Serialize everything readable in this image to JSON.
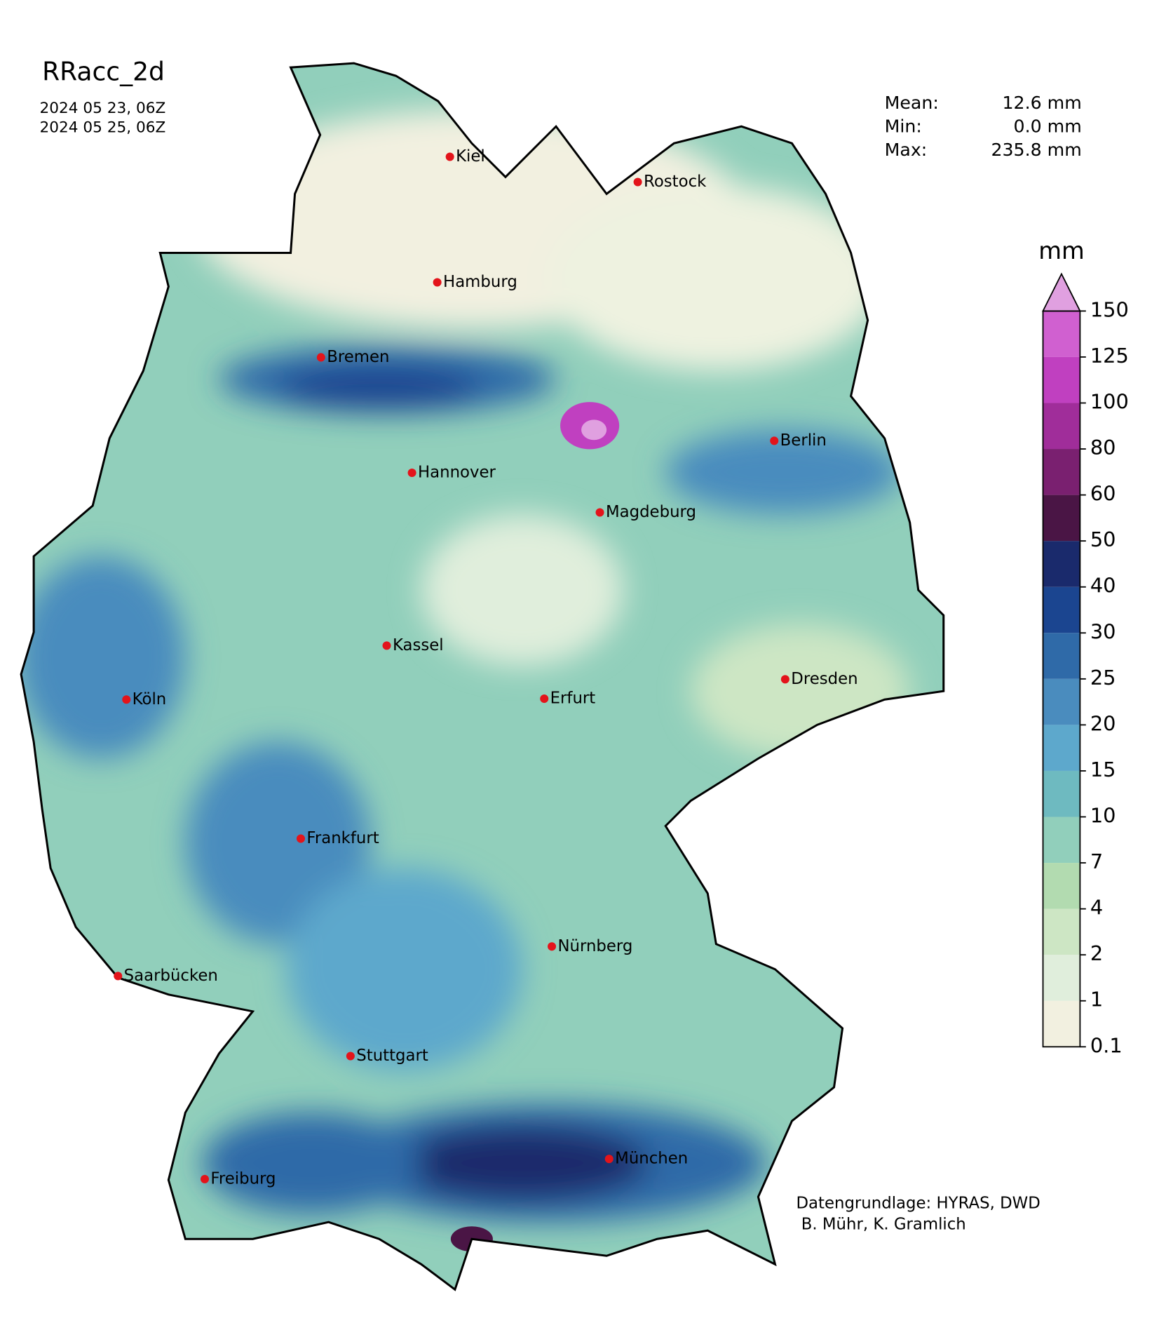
{
  "title": "RRacc_2d",
  "dates": [
    "2024 05 23, 06Z",
    "2024 05 25, 06Z"
  ],
  "stats": [
    {
      "label": "Mean:",
      "value": "12.6 mm"
    },
    {
      "label": "Min:",
      "value": "0.0 mm"
    },
    {
      "label": "Max:",
      "value": "235.8 mm"
    }
  ],
  "colorbar": {
    "unit": "mm",
    "ticks": [
      0.1,
      1,
      2,
      4,
      7,
      10,
      15,
      20,
      25,
      30,
      40,
      50,
      60,
      80,
      100,
      125,
      150
    ],
    "colors": [
      "#f2f0e0",
      "#e0eedc",
      "#cde6c4",
      "#b2dbb0",
      "#91cfbb",
      "#6ebac0",
      "#5da8cc",
      "#4a8cbe",
      "#2f6aa8",
      "#1b4590",
      "#1a2a6c",
      "#4a1545",
      "#7a2070",
      "#a02d9a",
      "#c040c0",
      "#d060d0"
    ],
    "extend_color": "#e0a0e0"
  },
  "cities": [
    "Kiel",
    "Rostock",
    "Hamburg",
    "Bremen",
    "Berlin",
    "Hannover",
    "Magdeburg",
    "Kassel",
    "Dresden",
    "Köln",
    "Erfurt",
    "Frankfurt",
    "Nürnberg",
    "Saarbücken",
    "Stuttgart",
    "München",
    "Freiburg"
  ],
  "credits": [
    "Datengrundlage: HYRAS, DWD",
    " B. Mühr, K. Gramlich"
  ]
}
